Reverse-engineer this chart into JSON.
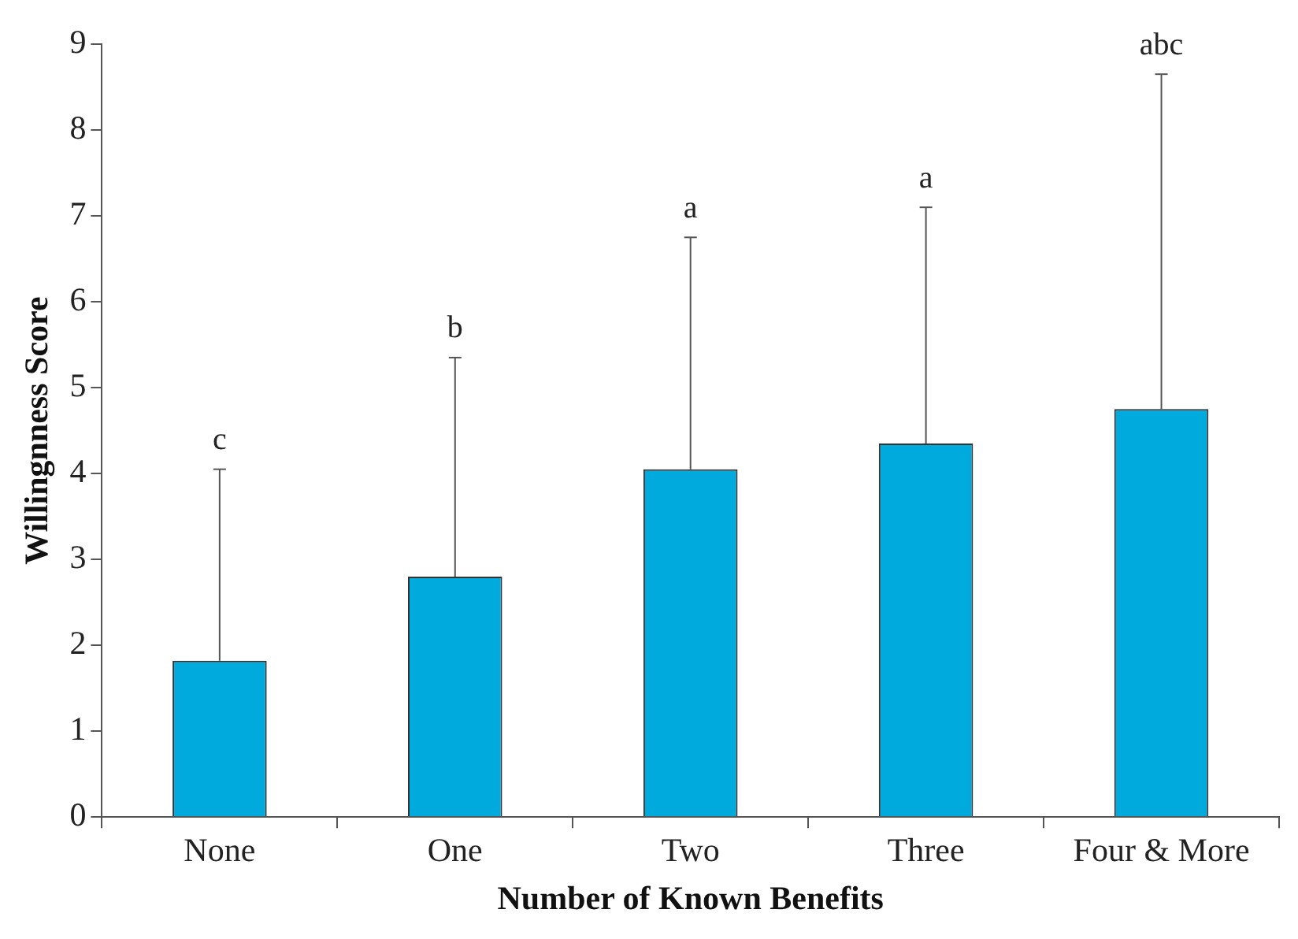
{
  "chart_data": {
    "type": "bar",
    "xlabel": "Number of Known Benefits",
    "ylabel": "Willingnness Score",
    "categories": [
      "None",
      "One",
      "Two",
      "Three",
      "Four & More"
    ],
    "values": [
      1.82,
      2.8,
      4.05,
      4.35,
      4.75
    ],
    "errors": [
      [
        1.82,
        4.05
      ],
      [
        2.8,
        5.35
      ],
      [
        4.05,
        6.75
      ],
      [
        4.35,
        7.1
      ],
      [
        4.75,
        8.65
      ]
    ],
    "color": "#00aadd",
    "ylim": [
      0,
      9
    ],
    "yticks": [
      0,
      1,
      2,
      3,
      4,
      5,
      6,
      7,
      8,
      9
    ],
    "grid": false,
    "legend": false,
    "annotations": [
      {
        "text": "c",
        "x": "None",
        "y": 4.05
      },
      {
        "text": "b",
        "x": "One",
        "y": 5.35
      },
      {
        "text": "a",
        "x": "Two",
        "y": 6.75
      },
      {
        "text": "a",
        "x": "Three",
        "y": 7.1
      },
      {
        "text": "abc",
        "x": "Four & More",
        "y": 8.65
      }
    ]
  }
}
